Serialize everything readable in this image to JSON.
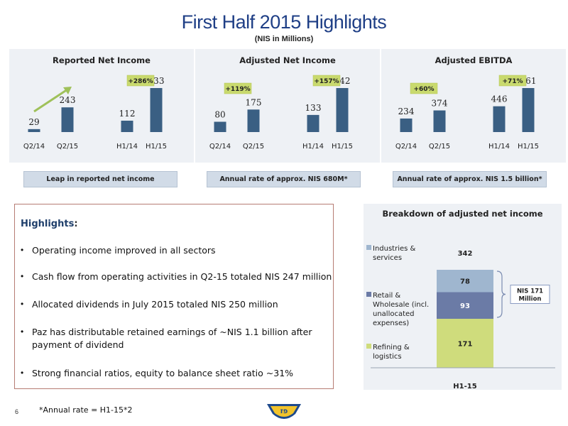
{
  "slide": {
    "title": "First Half 2015 Highlights",
    "subtitle": "(NIS in Millions)",
    "page_number": "6",
    "footnote": "*Annual rate = H1-15*2",
    "colors": {
      "title": "#1f3f86",
      "bar": "#3a5f83",
      "badge": "#c9da6e",
      "panel_bg": "#eef1f5"
    }
  },
  "captions": [
    "Leap in reported net income",
    "Annual rate of approx. NIS 680M*",
    "Annual rate of approx. NIS 1.5 billion*"
  ],
  "highlights": {
    "title": "Highlights",
    "colon": ":",
    "bullet": "•",
    "items": [
      "Operating income improved in all sectors",
      "Cash flow from operating activities in Q2-15 totaled NIS 247 million",
      "Allocated dividends in July 2015 totaled NIS 250 million",
      "Paz has distributable retained earnings of ~NIS 1.1 billion after payment of dividend",
      "Strong financial ratios, equity to balance sheet ratio ~31%"
    ]
  },
  "logo": {
    "text": "פז"
  },
  "chart_data": [
    {
      "type": "bar",
      "title": "Reported Net Income",
      "categories": [
        "Q2/14",
        "Q2/15",
        "H1/14",
        "H1/15"
      ],
      "values": [
        29,
        243,
        112,
        433
      ],
      "annotations": [
        {
          "label": "+286%",
          "over": "H1"
        }
      ],
      "ylim": [
        0,
        520
      ]
    },
    {
      "type": "bar",
      "title": "Adjusted Net Income",
      "categories": [
        "Q2/14",
        "Q2/15",
        "H1/14",
        "H1/15"
      ],
      "values": [
        80,
        175,
        133,
        342
      ],
      "annotations": [
        {
          "label": "+119%",
          "over": "Q2"
        },
        {
          "label": "+157%",
          "over": "H1"
        }
      ],
      "ylim": [
        0,
        450
      ]
    },
    {
      "type": "bar",
      "title": "Adjusted EBITDA",
      "categories": [
        "Q2/14",
        "Q2/15",
        "H1/14",
        "H1/15"
      ],
      "values": [
        234,
        374,
        446,
        761
      ],
      "annotations": [
        {
          "label": "+60%",
          "over": "Q2"
        },
        {
          "label": "+71%",
          "over": "H1"
        }
      ],
      "ylim": [
        0,
        900
      ]
    },
    {
      "type": "bar",
      "stacked": true,
      "title": "Breakdown of adjusted net income",
      "categories": [
        "H1-15"
      ],
      "total": 342,
      "series": [
        {
          "name": "Refining & logistics",
          "values": [
            171
          ],
          "color": "#cfdc7c"
        },
        {
          "name": "Retail & Wholesale (incl. unallocated expenses)",
          "values": [
            93
          ],
          "color": "#6b7ba6"
        },
        {
          "name": "Industries & services",
          "values": [
            78
          ],
          "color": "#9fb6cf"
        }
      ],
      "annotation": "NIS 171 Million"
    }
  ]
}
